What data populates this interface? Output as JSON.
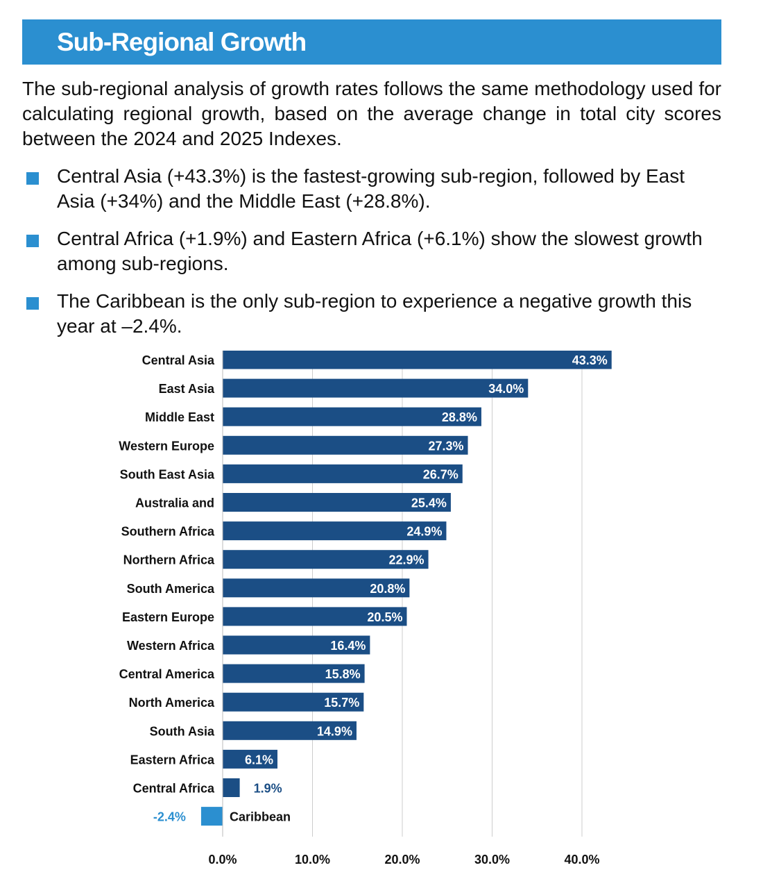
{
  "header": {
    "title": "Sub-Regional Growth"
  },
  "intro": "The sub-regional analysis of growth rates follows the same methodology used for calculating regional growth, based on the average change in total city scores between the 2024 and 2025 Indexes.",
  "bullets": [
    "Central Asia (+43.3%) is the fastest-growing sub-region, followed by East Asia (+34%) and the Middle East (+28.8%).",
    "Central Africa (+1.9%) and Eastern Africa (+6.1%) show the slowest growth among sub-regions.",
    "The Caribbean is the only sub-region to experience a negative growth this year at –2.4%."
  ],
  "colors": {
    "accent": "#2b8fd0",
    "bar": "#1b4e85",
    "negative_bar": "#2b8fd0",
    "grid": "#cccccc"
  },
  "chart_data": {
    "type": "bar",
    "orientation": "horizontal",
    "categories": [
      "Central Asia",
      "East Asia",
      "Middle East",
      "Western Europe",
      "South East Asia",
      "Australia and",
      "Southern Africa",
      "Northern Africa",
      "South America",
      "Eastern Europe",
      "Western Africa",
      "Central America",
      "North America",
      "South Asia",
      "Eastern Africa",
      "Central Africa",
      "Caribbean"
    ],
    "values": [
      43.3,
      34.0,
      28.8,
      27.3,
      26.7,
      25.4,
      24.9,
      22.9,
      20.8,
      20.5,
      16.4,
      15.8,
      15.7,
      14.9,
      6.1,
      1.9,
      -2.4
    ],
    "data_labels": [
      "43.3%",
      "34.0%",
      "28.8%",
      "27.3%",
      "26.7%",
      "25.4%",
      "24.9%",
      "22.9%",
      "20.8%",
      "20.5%",
      "16.4%",
      "15.8%",
      "15.7%",
      "14.9%",
      "6.1%",
      "1.9%",
      "-2.4%"
    ],
    "x_ticks": [
      0,
      10,
      20,
      30,
      40
    ],
    "x_tick_labels": [
      "0.0%",
      "10.0%",
      "20.0%",
      "30.0%",
      "40.0%"
    ],
    "xlim": [
      -2.4,
      45
    ],
    "grid": "vertical",
    "title": "",
    "xlabel": "",
    "ylabel": ""
  }
}
